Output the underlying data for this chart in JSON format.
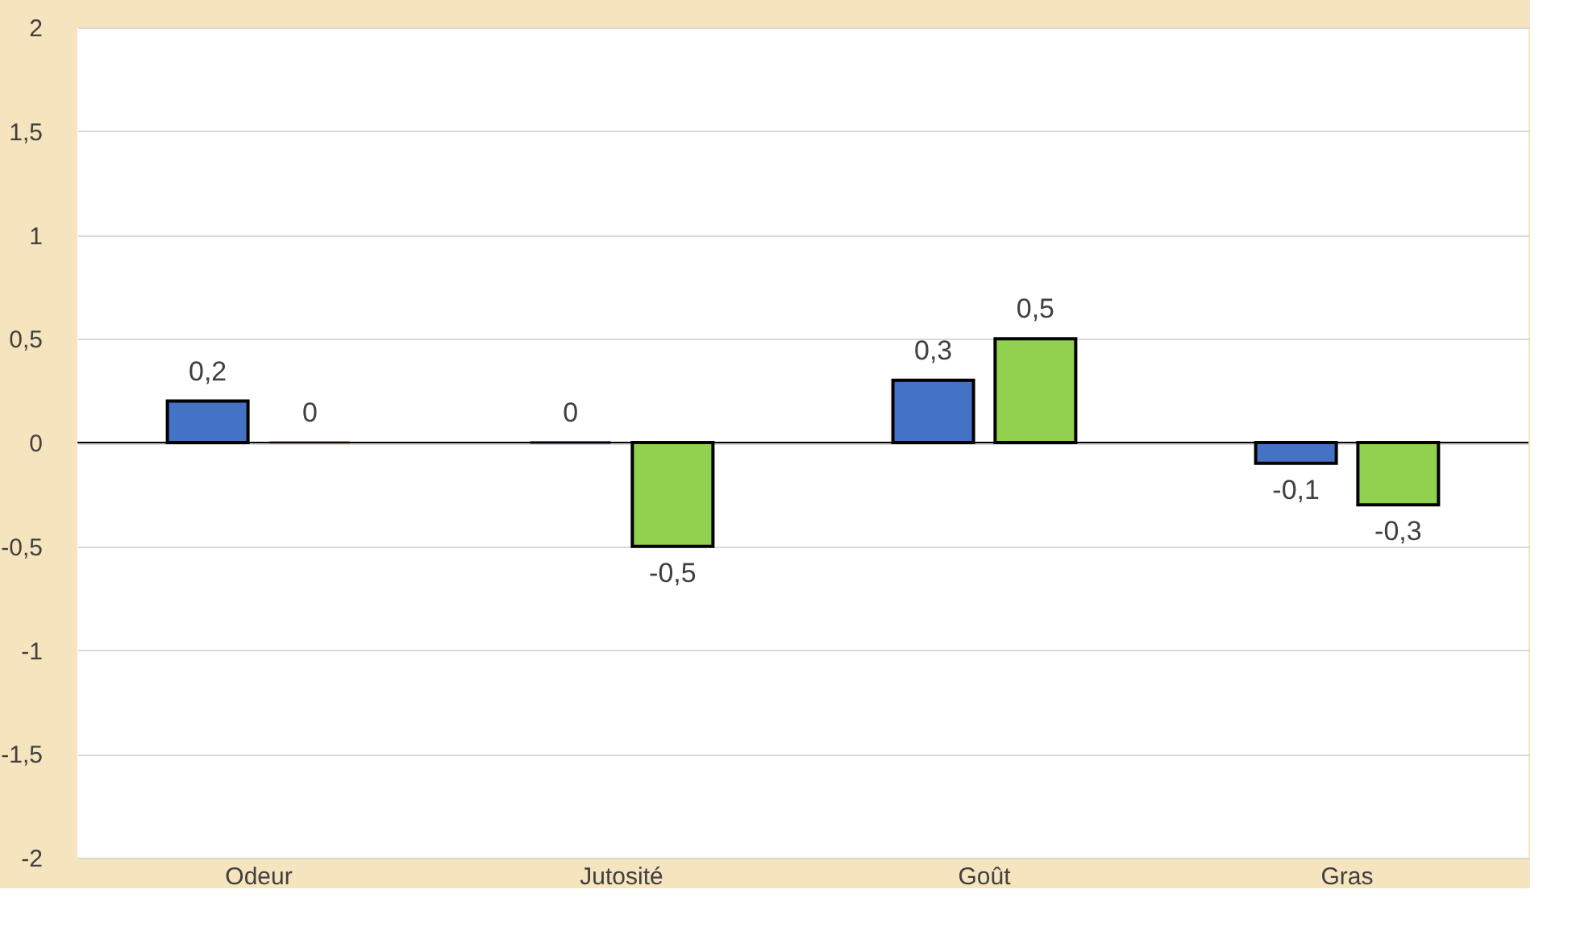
{
  "chart_data": {
    "type": "bar",
    "categories": [
      "Odeur",
      "Jutosité",
      "Goût",
      "Gras"
    ],
    "series": [
      {
        "color": "#4472c4",
        "values": [
          0.2,
          0,
          0.3,
          -0.1
        ],
        "value_labels": [
          "0,2",
          "0",
          "0,3",
          "-0,1"
        ]
      },
      {
        "color": "#92d050",
        "values": [
          0,
          -0.5,
          0.5,
          -0.3
        ],
        "value_labels": [
          "0",
          "-0,5",
          "0,5",
          "-0,3"
        ]
      }
    ],
    "ylim": [
      -2,
      2
    ],
    "yticks": [
      {
        "value": -2,
        "label": "-2"
      },
      {
        "value": -1.5,
        "label": "-1,5"
      },
      {
        "value": -1,
        "label": "-1"
      },
      {
        "value": -0.5,
        "label": "-0,5"
      },
      {
        "value": 0,
        "label": "0"
      },
      {
        "value": 0.5,
        "label": "0,5"
      },
      {
        "value": 1,
        "label": "1"
      },
      {
        "value": 1.5,
        "label": "1,5"
      },
      {
        "value": 2,
        "label": "2"
      }
    ],
    "grid": "y",
    "legend": false
  }
}
